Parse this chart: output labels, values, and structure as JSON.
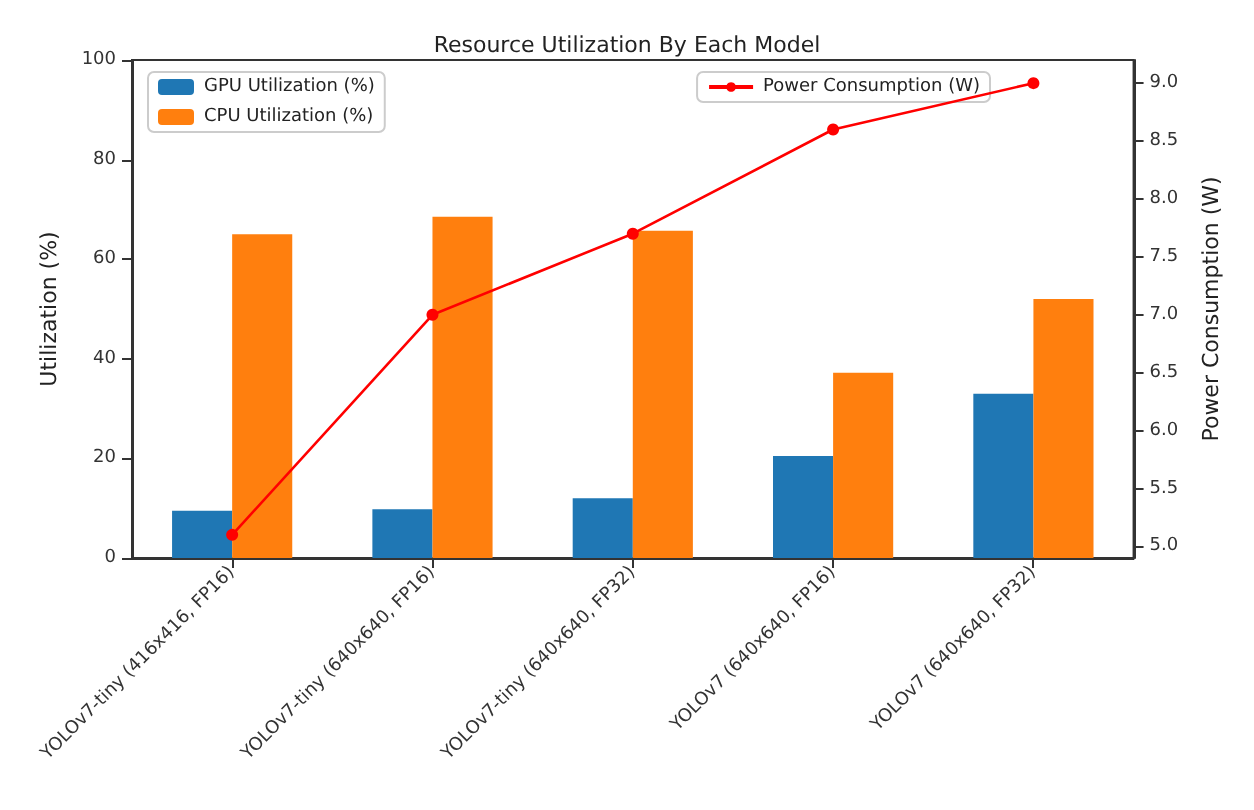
{
  "chart_data": {
    "type": "bar",
    "title": "Resource Utilization By Each Model",
    "ylabel": "Utilization (%)",
    "y2label": "Power Consumption (W)",
    "categories": [
      "YOLOv7-tiny (416x416, FP16)",
      "YOLOv7-tiny (640x640, FP16)",
      "YOLOv7-tiny (640x640, FP32)",
      "YOLOv7 (640x640, FP16)",
      "YOLOv7 (640x640, FP32)"
    ],
    "series": [
      {
        "name": "GPU Utilization (%)",
        "color": "#1f77b4",
        "values": [
          9.5,
          9.8,
          12,
          20.5,
          33
        ]
      },
      {
        "name": "CPU Utilization (%)",
        "color": "#ff7f0e",
        "values": [
          65,
          68.5,
          65.7,
          37.2,
          52
        ]
      },
      {
        "name": "Power Consumption (W)",
        "type": "line",
        "axis": "y2",
        "color": "#ff0000",
        "marker": "circle",
        "values": [
          5.1,
          7.0,
          7.7,
          8.6,
          9.0
        ]
      }
    ],
    "ylim": [
      0,
      100
    ],
    "yticks": [
      0,
      20,
      40,
      60,
      80,
      100
    ],
    "y2lim": [
      4.9,
      9.2
    ],
    "y2ticks": [
      {
        "value": 5,
        "label": "5.0"
      },
      {
        "value": 5.5,
        "label": "5.5"
      },
      {
        "value": 6,
        "label": "6.0"
      },
      {
        "value": 6.5,
        "label": "6.5"
      },
      {
        "value": 7,
        "label": "7.0"
      },
      {
        "value": 7.5,
        "label": "7.5"
      },
      {
        "value": 8,
        "label": "8.0"
      },
      {
        "value": 8.5,
        "label": "8.5"
      },
      {
        "value": 9,
        "label": "9.0"
      }
    ],
    "grid": false,
    "legend": "top left"
  }
}
